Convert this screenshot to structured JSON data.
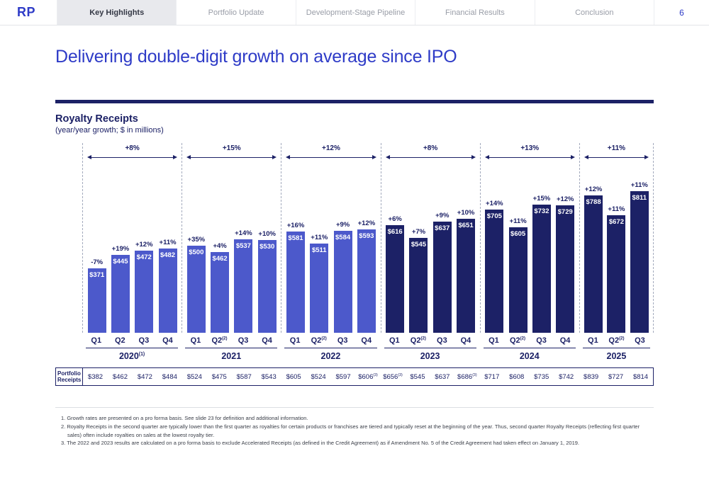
{
  "header": {
    "logo": "RP",
    "tabs": [
      {
        "label": "Key Highlights",
        "active": true
      },
      {
        "label": "Portfolio Update",
        "active": false
      },
      {
        "label": "Development-Stage Pipeline",
        "active": false
      },
      {
        "label": "Financial Results",
        "active": false
      },
      {
        "label": "Conclusion",
        "active": false
      }
    ],
    "page_number": "6"
  },
  "title": "Delivering double-digit growth on average since IPO",
  "chart_data": {
    "type": "bar",
    "title": "Royalty Receipts",
    "subtitle": "(year/year growth; $ in millions)",
    "ylabel": "Royalty Receipts ($ in millions)",
    "ylim": [
      0,
      850
    ],
    "grid": false,
    "colors": {
      "years_2020_2022": "#4c59cb",
      "years_2023_2025": "#1c2166",
      "text": "#1c2166"
    },
    "groups": [
      {
        "year": "2020",
        "year_sup": "(1)",
        "growth": "+8%",
        "color": "#4c59cb",
        "bars": [
          {
            "quarter": "Q1",
            "quarter_sup": "",
            "growth": "-7%",
            "value": 371,
            "label": "$371",
            "portfolio_receipts": "$382",
            "receipts_sup": ""
          },
          {
            "quarter": "Q2",
            "quarter_sup": "",
            "growth": "+19%",
            "value": 445,
            "label": "$445",
            "portfolio_receipts": "$462",
            "receipts_sup": ""
          },
          {
            "quarter": "Q3",
            "quarter_sup": "",
            "growth": "+12%",
            "value": 472,
            "label": "$472",
            "portfolio_receipts": "$472",
            "receipts_sup": ""
          },
          {
            "quarter": "Q4",
            "quarter_sup": "",
            "growth": "+11%",
            "value": 482,
            "label": "$482",
            "portfolio_receipts": "$484",
            "receipts_sup": ""
          }
        ]
      },
      {
        "year": "2021",
        "year_sup": "",
        "growth": "+15%",
        "color": "#4c59cb",
        "bars": [
          {
            "quarter": "Q1",
            "quarter_sup": "",
            "growth": "+35%",
            "value": 500,
            "label": "$500",
            "portfolio_receipts": "$524",
            "receipts_sup": ""
          },
          {
            "quarter": "Q2",
            "quarter_sup": "(2)",
            "growth": "+4%",
            "value": 462,
            "label": "$462",
            "portfolio_receipts": "$475",
            "receipts_sup": ""
          },
          {
            "quarter": "Q3",
            "quarter_sup": "",
            "growth": "+14%",
            "value": 537,
            "label": "$537",
            "portfolio_receipts": "$587",
            "receipts_sup": ""
          },
          {
            "quarter": "Q4",
            "quarter_sup": "",
            "growth": "+10%",
            "value": 530,
            "label": "$530",
            "portfolio_receipts": "$543",
            "receipts_sup": ""
          }
        ]
      },
      {
        "year": "2022",
        "year_sup": "",
        "growth": "+12%",
        "color": "#4c59cb",
        "bars": [
          {
            "quarter": "Q1",
            "quarter_sup": "",
            "growth": "+16%",
            "value": 581,
            "label": "$581",
            "portfolio_receipts": "$605",
            "receipts_sup": ""
          },
          {
            "quarter": "Q2",
            "quarter_sup": "(2)",
            "growth": "+11%",
            "value": 511,
            "label": "$511",
            "portfolio_receipts": "$524",
            "receipts_sup": ""
          },
          {
            "quarter": "Q3",
            "quarter_sup": "",
            "growth": "+9%",
            "value": 584,
            "label": "$584",
            "portfolio_receipts": "$597",
            "receipts_sup": ""
          },
          {
            "quarter": "Q4",
            "quarter_sup": "",
            "growth": "+12%",
            "value": 593,
            "label": "$593",
            "portfolio_receipts": "$606",
            "receipts_sup": "(3)"
          }
        ]
      },
      {
        "year": "2023",
        "year_sup": "",
        "growth": "+8%",
        "color": "#1c2166",
        "bars": [
          {
            "quarter": "Q1",
            "quarter_sup": "",
            "growth": "+6%",
            "value": 616,
            "label": "$616",
            "portfolio_receipts": "$656",
            "receipts_sup": "(3)"
          },
          {
            "quarter": "Q2",
            "quarter_sup": "(2)",
            "growth": "+7%",
            "value": 545,
            "label": "$545",
            "portfolio_receipts": "$545",
            "receipts_sup": ""
          },
          {
            "quarter": "Q3",
            "quarter_sup": "",
            "growth": "+9%",
            "value": 637,
            "label": "$637",
            "portfolio_receipts": "$637",
            "receipts_sup": ""
          },
          {
            "quarter": "Q4",
            "quarter_sup": "",
            "growth": "+10%",
            "value": 651,
            "label": "$651",
            "portfolio_receipts": "$686",
            "receipts_sup": "(3)"
          }
        ]
      },
      {
        "year": "2024",
        "year_sup": "",
        "growth": "+13%",
        "color": "#1c2166",
        "bars": [
          {
            "quarter": "Q1",
            "quarter_sup": "",
            "growth": "+14%",
            "value": 705,
            "label": "$705",
            "portfolio_receipts": "$717",
            "receipts_sup": ""
          },
          {
            "quarter": "Q2",
            "quarter_sup": "(2)",
            "growth": "+11%",
            "value": 605,
            "label": "$605",
            "portfolio_receipts": "$608",
            "receipts_sup": ""
          },
          {
            "quarter": "Q3",
            "quarter_sup": "",
            "growth": "+15%",
            "value": 732,
            "label": "$732",
            "portfolio_receipts": "$735",
            "receipts_sup": ""
          },
          {
            "quarter": "Q4",
            "quarter_sup": "",
            "growth": "+12%",
            "value": 729,
            "label": "$729",
            "portfolio_receipts": "$742",
            "receipts_sup": ""
          }
        ]
      },
      {
        "year": "2025",
        "year_sup": "",
        "growth": "+11%",
        "color": "#1c2166",
        "bars": [
          {
            "quarter": "Q1",
            "quarter_sup": "",
            "growth": "+12%",
            "value": 788,
            "label": "$788",
            "portfolio_receipts": "$839",
            "receipts_sup": ""
          },
          {
            "quarter": "Q2",
            "quarter_sup": "(2)",
            "growth": "+11%",
            "value": 672,
            "label": "$672",
            "portfolio_receipts": "$727",
            "receipts_sup": ""
          },
          {
            "quarter": "Q3",
            "quarter_sup": "",
            "growth": "+11%",
            "value": 811,
            "label": "$811",
            "portfolio_receipts": "$814",
            "receipts_sup": ""
          }
        ]
      }
    ]
  },
  "table": {
    "label": "Portfolio Receipts"
  },
  "footnotes": [
    "1. Growth rates are presented on a pro forma basis. See slide 23 for definition and additional information.",
    "2. Royalty Receipts in the second quarter are typically lower than the first quarter as royalties for certain products or franchises are tiered and typically reset at the beginning of the year. Thus, second quarter Royalty Receipts (reflecting first quarter sales) often include royalties on sales at the lowest royalty tier.",
    "3. The 2022 and 2023 results are calculated on a pro forma basis to exclude Accelerated Receipts (as defined in the Credit Agreement) as if Amendment No. 5 of the Credit Agreement had taken effect on January 1, 2019."
  ]
}
